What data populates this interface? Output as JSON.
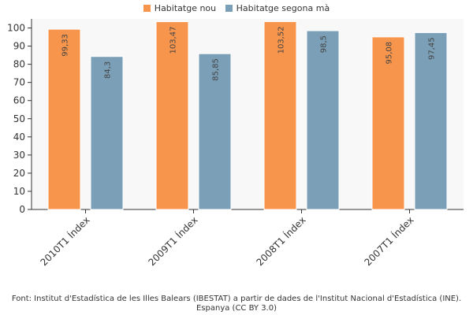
{
  "chart_data": {
    "type": "bar",
    "categories": [
      "2010T1 Índex",
      "2009T1 Índex",
      "2008T1 Índex",
      "2007T1 Índex"
    ],
    "series": [
      {
        "name": "Habitatge nou",
        "color": "#f7954c",
        "values": [
          99.33,
          103.47,
          103.52,
          95.08
        ],
        "labels": [
          "99,33",
          "103,47",
          "103,52",
          "95,08"
        ]
      },
      {
        "name": "Habitatge segona mà",
        "color": "#7a9fb7",
        "values": [
          84.3,
          85.85,
          98.5,
          97.45
        ],
        "labels": [
          "84,3",
          "85,85",
          "98,5",
          "97,45"
        ]
      }
    ],
    "ylim": [
      0,
      105
    ],
    "yticks": [
      0,
      10,
      20,
      30,
      40,
      50,
      60,
      70,
      80,
      90,
      100
    ],
    "grid": false,
    "legend_position": "top-center"
  },
  "source": "Font: Institut d'Estadística de les Illes Balears (IBESTAT) a partir de dades de l'Institut Nacional d'Estadística (INE). Espanya (CC BY 3.0)"
}
